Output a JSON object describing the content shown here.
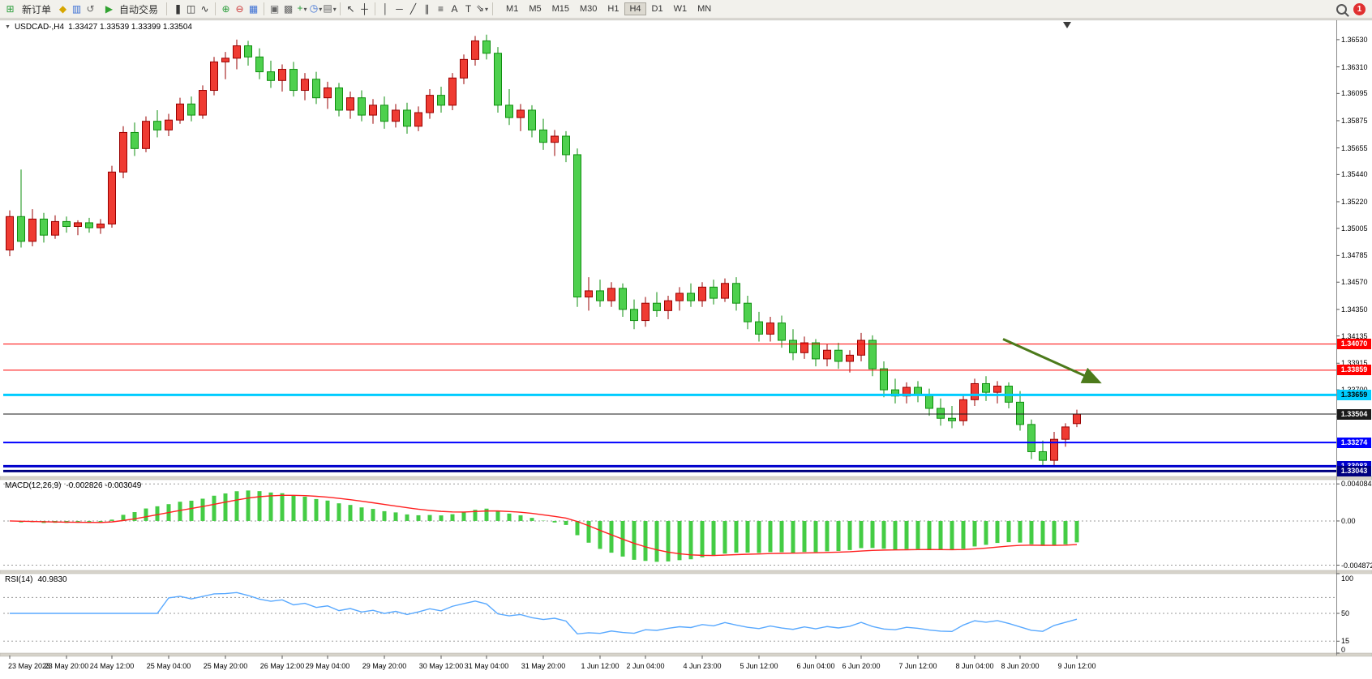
{
  "toolbar": {
    "new_order_label": "新订单",
    "autotrading_label": "自动交易",
    "timeframes": [
      "M1",
      "M5",
      "M15",
      "M30",
      "H1",
      "H4",
      "D1",
      "W1",
      "MN"
    ],
    "active_timeframe": "H4",
    "notification_badge": "1",
    "icons": {
      "new_order": "⊞",
      "market_watch": "◆",
      "profiles": "▥",
      "refresh": "↺",
      "autotrading": "▶",
      "bar_chart": "|||",
      "candle_chart": "◫",
      "line_chart": "∿",
      "zoom_in": "⊕",
      "zoom_out": "⊖",
      "tile_windows": "▦",
      "arrange_windows": "▣",
      "cascade_windows": "▩",
      "indicators_add": "+",
      "periods": "◷",
      "templates": "▤",
      "cursor": "↖",
      "crosshair": "┼",
      "vertical_line": "│",
      "horizontal_line": "─",
      "trendline": "╱",
      "channel": "∥",
      "fibonacci": "≡",
      "text": "A",
      "text_label": "T",
      "shapes": "⇘",
      "caret": "▾",
      "collapse_triangle": "▼"
    }
  },
  "chart_header": {
    "symbol_title": "USDCAD-,H4",
    "ohlc_text": "1.33427 1.33539 1.33399 1.33504"
  },
  "chart_data": {
    "type": "candlestick",
    "symbol": "USDCAD-",
    "period": "H4",
    "price_axis": {
      "ylim": [
        1.33,
        1.3668
      ],
      "ticks": [
        "1.36530",
        "1.36310",
        "1.36095",
        "1.35875",
        "1.35655",
        "1.35440",
        "1.35220",
        "1.35005",
        "1.34785",
        "1.34570",
        "1.34350",
        "1.34135",
        "1.33915",
        "1.33700",
        "1.33480"
      ]
    },
    "time_axis": {
      "labels": [
        {
          "i": 0,
          "t": "23 May 2023"
        },
        {
          "i": 5,
          "t": "23 May 20:00"
        },
        {
          "i": 9,
          "t": "24 May 12:00"
        },
        {
          "i": 14,
          "t": "25 May 04:00"
        },
        {
          "i": 19,
          "t": "25 May 20:00"
        },
        {
          "i": 24,
          "t": "26 May 12:00"
        },
        {
          "i": 28,
          "t": "29 May 04:00"
        },
        {
          "i": 33,
          "t": "29 May 20:00"
        },
        {
          "i": 38,
          "t": "30 May 12:00"
        },
        {
          "i": 42,
          "t": "31 May 04:00"
        },
        {
          "i": 47,
          "t": "31 May 20:00"
        },
        {
          "i": 52,
          "t": "1 Jun 12:00"
        },
        {
          "i": 56,
          "t": "2 Jun 04:00"
        },
        {
          "i": 61,
          "t": "4 Jun 23:00"
        },
        {
          "i": 66,
          "t": "5 Jun 12:00"
        },
        {
          "i": 71,
          "t": "6 Jun 04:00"
        },
        {
          "i": 75,
          "t": "6 Jun 20:00"
        },
        {
          "i": 80,
          "t": "7 Jun 12:00"
        },
        {
          "i": 85,
          "t": "8 Jun 04:00"
        },
        {
          "i": 89,
          "t": "8 Jun 20:00"
        },
        {
          "i": 94,
          "t": "9 Jun 12:00"
        }
      ]
    },
    "colors": {
      "up_fill": "#ef3b32",
      "up_stroke": "#990000",
      "down_fill": "#4ed04e",
      "down_stroke": "#0f8f0f"
    },
    "candles": [
      [
        1.3483,
        1.3515,
        1.3478,
        1.351
      ],
      [
        1.351,
        1.3548,
        1.3485,
        1.349
      ],
      [
        1.349,
        1.3516,
        1.3486,
        1.3508
      ],
      [
        1.3508,
        1.3513,
        1.3489,
        1.3495
      ],
      [
        1.3495,
        1.3511,
        1.3492,
        1.3506
      ],
      [
        1.3506,
        1.351,
        1.3497,
        1.3502
      ],
      [
        1.3502,
        1.3507,
        1.3495,
        1.3505
      ],
      [
        1.3505,
        1.3509,
        1.3497,
        1.3501
      ],
      [
        1.3501,
        1.3508,
        1.3496,
        1.3504
      ],
      [
        1.3504,
        1.3551,
        1.3501,
        1.3546
      ],
      [
        1.3546,
        1.3583,
        1.3541,
        1.3578
      ],
      [
        1.3578,
        1.3586,
        1.3559,
        1.3565
      ],
      [
        1.3565,
        1.3591,
        1.3562,
        1.3587
      ],
      [
        1.3587,
        1.3596,
        1.3574,
        1.358
      ],
      [
        1.358,
        1.3593,
        1.3575,
        1.3588
      ],
      [
        1.3588,
        1.3606,
        1.3585,
        1.3601
      ],
      [
        1.3601,
        1.3607,
        1.3587,
        1.3592
      ],
      [
        1.3592,
        1.3616,
        1.3589,
        1.3612
      ],
      [
        1.3612,
        1.3639,
        1.3608,
        1.3635
      ],
      [
        1.3635,
        1.3643,
        1.3621,
        1.3638
      ],
      [
        1.3638,
        1.3653,
        1.3629,
        1.3648
      ],
      [
        1.3648,
        1.3652,
        1.3632,
        1.3639
      ],
      [
        1.3639,
        1.3646,
        1.3621,
        1.3627
      ],
      [
        1.3627,
        1.3636,
        1.3614,
        1.362
      ],
      [
        1.362,
        1.3633,
        1.3611,
        1.3629
      ],
      [
        1.3629,
        1.3635,
        1.3607,
        1.3612
      ],
      [
        1.3612,
        1.3626,
        1.3604,
        1.3621
      ],
      [
        1.3621,
        1.3627,
        1.3601,
        1.3606
      ],
      [
        1.3606,
        1.3619,
        1.3597,
        1.3614
      ],
      [
        1.3614,
        1.3618,
        1.3591,
        1.3596
      ],
      [
        1.3596,
        1.3611,
        1.3589,
        1.3606
      ],
      [
        1.3606,
        1.3612,
        1.3587,
        1.3592
      ],
      [
        1.3592,
        1.3605,
        1.3585,
        1.36
      ],
      [
        1.36,
        1.3607,
        1.3581,
        1.3587
      ],
      [
        1.3587,
        1.3601,
        1.3582,
        1.3596
      ],
      [
        1.3596,
        1.3602,
        1.3577,
        1.3583
      ],
      [
        1.3583,
        1.3599,
        1.3579,
        1.3594
      ],
      [
        1.3594,
        1.3613,
        1.3589,
        1.3608
      ],
      [
        1.3608,
        1.3615,
        1.3594,
        1.36
      ],
      [
        1.36,
        1.3626,
        1.3596,
        1.3622
      ],
      [
        1.3622,
        1.3641,
        1.3617,
        1.3637
      ],
      [
        1.3637,
        1.3656,
        1.3632,
        1.3652
      ],
      [
        1.3652,
        1.3657,
        1.3637,
        1.3642
      ],
      [
        1.3642,
        1.3647,
        1.3594,
        1.36
      ],
      [
        1.36,
        1.3613,
        1.3584,
        1.359
      ],
      [
        1.359,
        1.3601,
        1.3579,
        1.3596
      ],
      [
        1.3596,
        1.36,
        1.3574,
        1.358
      ],
      [
        1.358,
        1.3589,
        1.3564,
        1.357
      ],
      [
        1.357,
        1.358,
        1.3559,
        1.3575
      ],
      [
        1.3575,
        1.3579,
        1.3554,
        1.356
      ],
      [
        1.356,
        1.3565,
        1.3437,
        1.3445
      ],
      [
        1.3445,
        1.3461,
        1.3434,
        1.345
      ],
      [
        1.345,
        1.3459,
        1.3437,
        1.3442
      ],
      [
        1.3442,
        1.3457,
        1.3437,
        1.3452
      ],
      [
        1.3452,
        1.3456,
        1.3429,
        1.3435
      ],
      [
        1.3435,
        1.3443,
        1.3419,
        1.3426
      ],
      [
        1.3426,
        1.3445,
        1.3421,
        1.344
      ],
      [
        1.344,
        1.3449,
        1.3429,
        1.3434
      ],
      [
        1.3434,
        1.3446,
        1.3427,
        1.3442
      ],
      [
        1.3442,
        1.3453,
        1.3434,
        1.3448
      ],
      [
        1.3448,
        1.3456,
        1.3437,
        1.3442
      ],
      [
        1.3442,
        1.3457,
        1.3437,
        1.3453
      ],
      [
        1.3453,
        1.3459,
        1.3439,
        1.3444
      ],
      [
        1.3444,
        1.346,
        1.3441,
        1.3456
      ],
      [
        1.3456,
        1.3461,
        1.3434,
        1.344
      ],
      [
        1.344,
        1.3446,
        1.3419,
        1.3425
      ],
      [
        1.3425,
        1.3433,
        1.3409,
        1.3415
      ],
      [
        1.3415,
        1.3429,
        1.3409,
        1.3424
      ],
      [
        1.3424,
        1.343,
        1.3404,
        1.341
      ],
      [
        1.341,
        1.3419,
        1.3394,
        1.34
      ],
      [
        1.34,
        1.3413,
        1.3395,
        1.3408
      ],
      [
        1.3408,
        1.3411,
        1.3389,
        1.3395
      ],
      [
        1.3395,
        1.3407,
        1.3389,
        1.3402
      ],
      [
        1.3402,
        1.3408,
        1.3387,
        1.3393
      ],
      [
        1.3393,
        1.3402,
        1.3384,
        1.3398
      ],
      [
        1.3398,
        1.3416,
        1.3393,
        1.341
      ],
      [
        1.341,
        1.3414,
        1.3381,
        1.3387
      ],
      [
        1.3387,
        1.3393,
        1.3364,
        1.337
      ],
      [
        1.337,
        1.3379,
        1.3359,
        1.3365
      ],
      [
        1.3365,
        1.3376,
        1.3359,
        1.3372
      ],
      [
        1.3372,
        1.3377,
        1.336,
        1.3366
      ],
      [
        1.3366,
        1.3371,
        1.3349,
        1.3355
      ],
      [
        1.3355,
        1.3363,
        1.3341,
        1.3347
      ],
      [
        1.3347,
        1.3357,
        1.3339,
        1.3345
      ],
      [
        1.3345,
        1.3366,
        1.3341,
        1.3362
      ],
      [
        1.3362,
        1.3379,
        1.3357,
        1.3375
      ],
      [
        1.3375,
        1.3381,
        1.3361,
        1.3368
      ],
      [
        1.3368,
        1.3377,
        1.3359,
        1.3373
      ],
      [
        1.3373,
        1.3376,
        1.3355,
        1.336
      ],
      [
        1.336,
        1.3369,
        1.3337,
        1.3342
      ],
      [
        1.3342,
        1.3346,
        1.3314,
        1.332
      ],
      [
        1.332,
        1.3329,
        1.3308,
        1.3313
      ],
      [
        1.3313,
        1.3336,
        1.3309,
        1.333
      ],
      [
        1.333,
        1.3343,
        1.3324,
        1.334
      ],
      [
        1.33427,
        1.33539,
        1.33399,
        1.33504
      ]
    ],
    "hlines": [
      {
        "value": 1.3407,
        "color": "#ff0000",
        "width": 1,
        "tag": "1.34070",
        "tag_text": "#ffffff"
      },
      {
        "value": 1.33859,
        "color": "#ff0000",
        "width": 1,
        "tag": "1.33859",
        "tag_text": "#ffffff"
      },
      {
        "value": 1.33659,
        "color": "#00ccff",
        "width": 3,
        "tag": "1.33659",
        "tag_text": "#000000"
      },
      {
        "value": 1.33504,
        "color": "#1a1a1a",
        "width": 1,
        "tag": "1.33504",
        "tag_text": "#ffffff"
      },
      {
        "value": 1.33274,
        "color": "#0000ff",
        "width": 2,
        "tag": "1.33274",
        "tag_text": "#ffffff"
      },
      {
        "value": 1.33083,
        "color": "#0000cc",
        "width": 3,
        "tag": "1.33083",
        "tag_text": "#ffffff"
      },
      {
        "value": 1.33043,
        "color": "#000080",
        "width": 3,
        "tag": "1.33043",
        "tag_text": "#ffffff"
      }
    ],
    "arrow": {
      "from_i": 87.5,
      "from_price": 1.3411,
      "to_i": 96.0,
      "to_price": 1.3376,
      "color": "#4c7a1b"
    },
    "macd": {
      "label": "MACD(12,26,9)",
      "values_text": "-0.002826 -0.003049",
      "params": [
        12,
        26,
        9
      ],
      "ylim": [
        -0.00545,
        0.00455
      ],
      "ticks": [
        {
          "v": 0.004084,
          "label": "0.004084"
        },
        {
          "v": 0,
          "label": "0.00"
        },
        {
          "v": -0.004872,
          "label": "-0.004872"
        }
      ],
      "histogram_color": "#44cc44",
      "signal_color": "#ff2020"
    },
    "rsi": {
      "label": "RSI(14)",
      "value_text": "40.9830",
      "period": 14,
      "ylim": [
        0,
        100
      ],
      "ticks": [
        {
          "v": 100,
          "label": "100"
        },
        {
          "v": 50,
          "label": "50"
        },
        {
          "v": 15,
          "label": "15"
        },
        {
          "v": 0,
          "label": "0"
        }
      ],
      "levels": [
        70,
        50,
        15
      ],
      "line_color": "#59a9ff"
    }
  }
}
